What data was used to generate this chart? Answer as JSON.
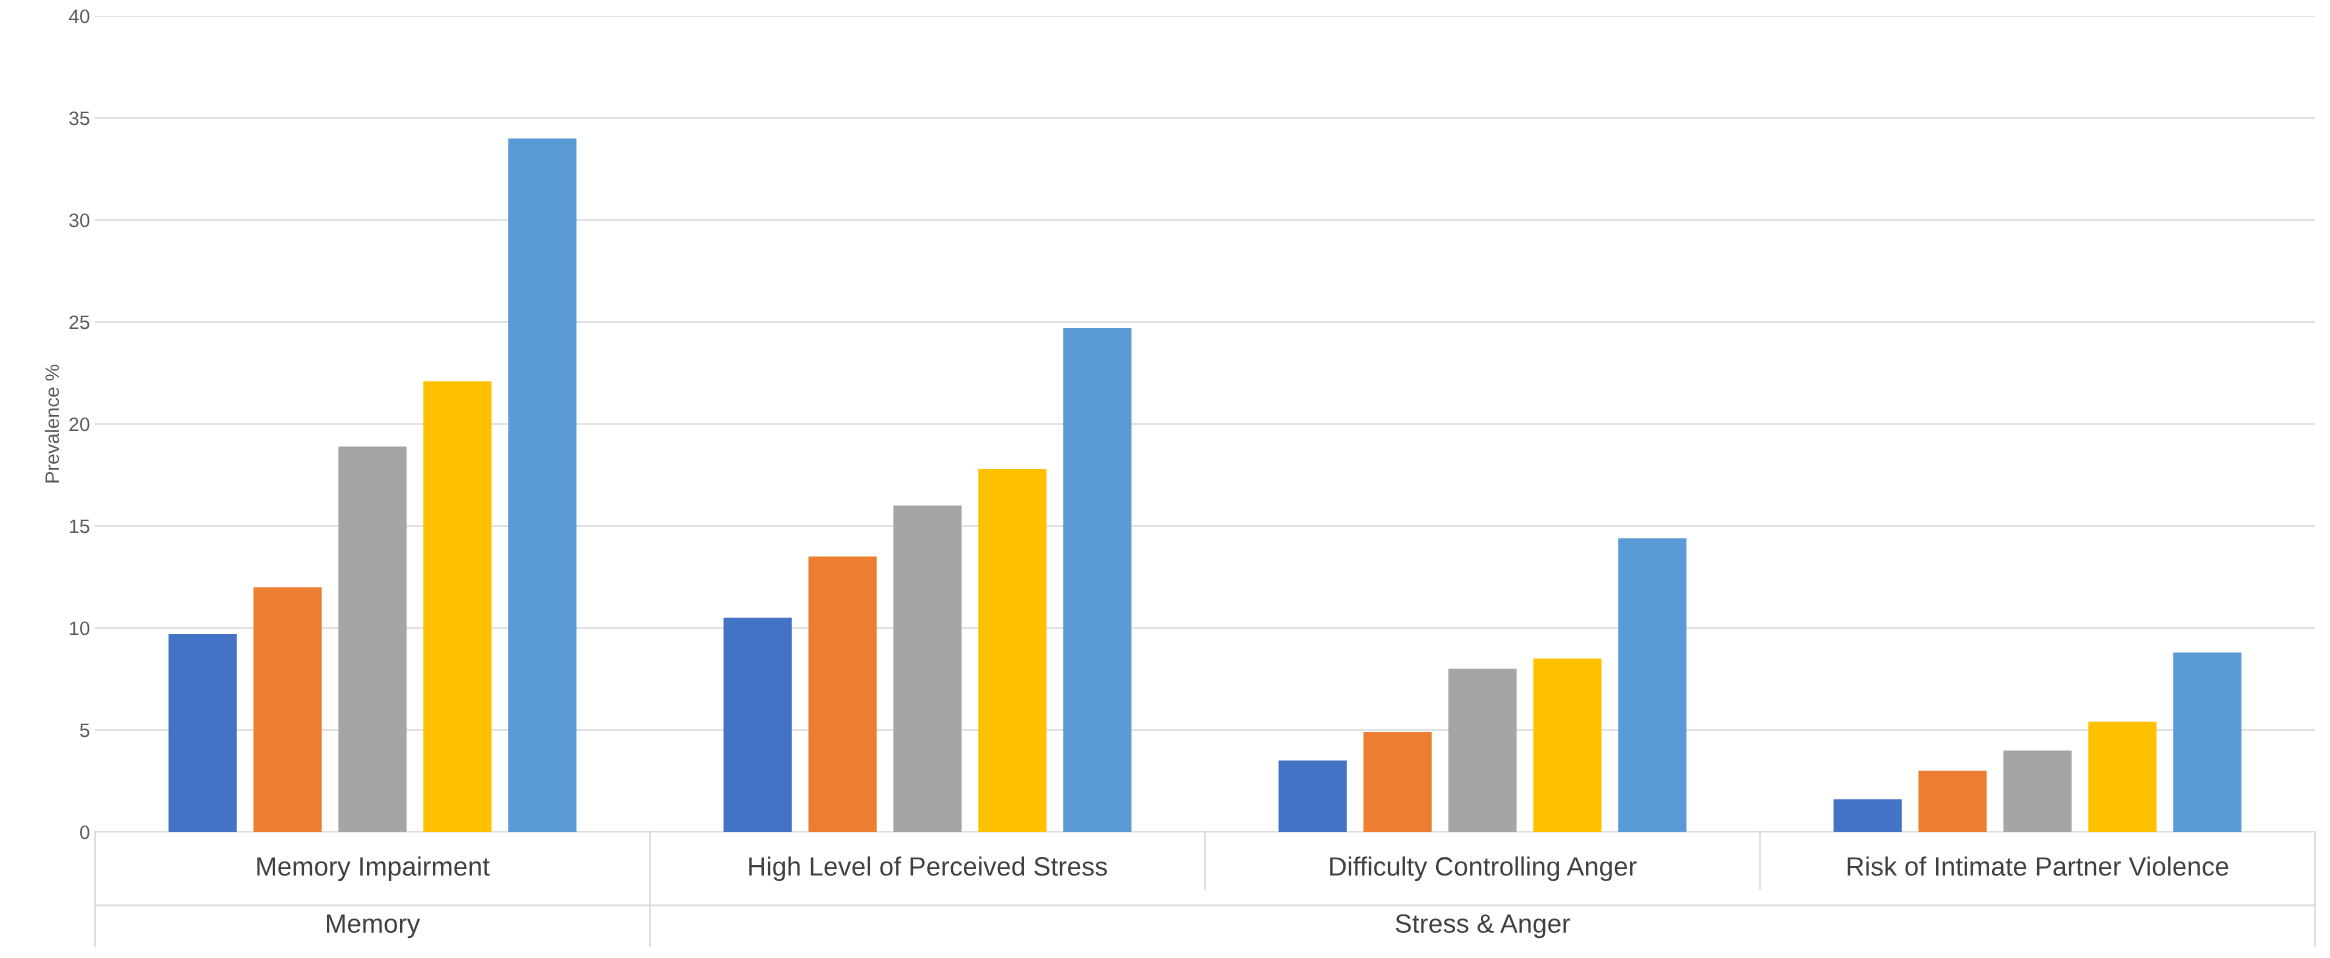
{
  "chart_data": {
    "type": "bar",
    "ylabel": "Prevalence %",
    "categories": [
      "Memory Impairment",
      "High Level of Perceived Stress",
      "Difficulty Controlling Anger",
      "Risk of Intimate Partner Violence"
    ],
    "series": [
      {
        "color": "#4472c4",
        "values": [
          9.7,
          10.5,
          3.5,
          1.6
        ]
      },
      {
        "color": "#ed7d31",
        "values": [
          12.0,
          13.5,
          4.9,
          3.0
        ]
      },
      {
        "color": "#a5a5a5",
        "values": [
          18.9,
          16.0,
          8.0,
          4.0
        ]
      },
      {
        "color": "#ffc000",
        "values": [
          22.1,
          17.8,
          8.5,
          5.4
        ]
      },
      {
        "color": "#5b9bd5",
        "values": [
          34.0,
          24.7,
          14.4,
          8.8
        ]
      }
    ],
    "annotations": [
      "Memory",
      "Stress & Anger"
    ],
    "ylim": [
      0,
      40
    ],
    "yticks": [
      0,
      5,
      10,
      15,
      20,
      25,
      30,
      35,
      40
    ],
    "grid": "y",
    "legend": false
  }
}
